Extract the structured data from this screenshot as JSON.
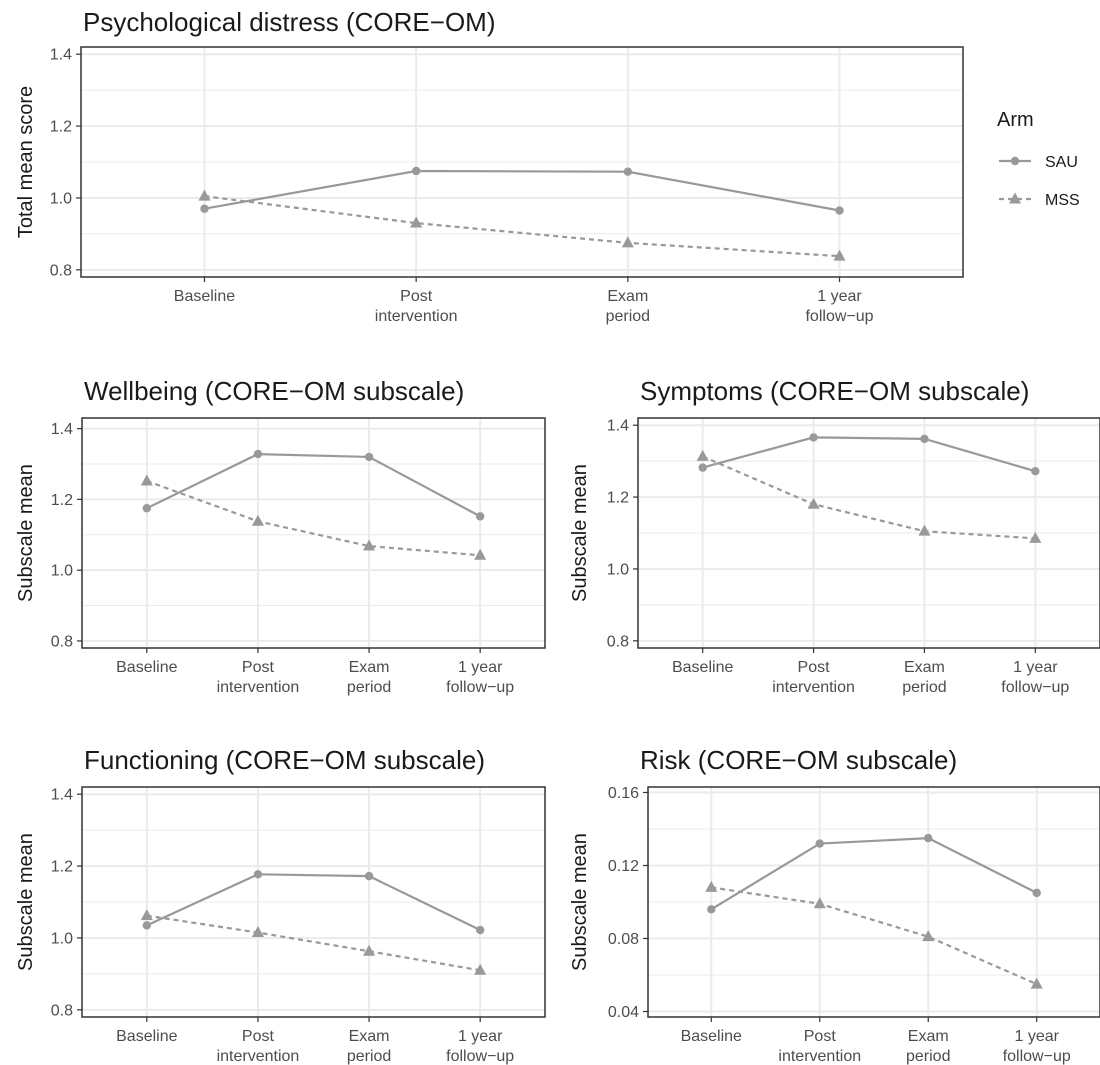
{
  "colors": {
    "series": "#999999",
    "grid": "#ebebeb",
    "panel_border": "#333333",
    "text": "#1a1a1a",
    "tick_text": "#4d4d4d"
  },
  "legend": {
    "title": "Arm",
    "items": [
      {
        "label": "SAU",
        "shape": "circle",
        "linetype": "solid"
      },
      {
        "label": "MSS",
        "shape": "triangle",
        "linetype": "dashed"
      }
    ],
    "placement": "right"
  },
  "chart_data": [
    {
      "type": "line",
      "title": "Psychological distress (CORE−OM)",
      "ylabel": "Total mean score",
      "xlabel": "",
      "categories": [
        "Baseline",
        "Post\nintervention",
        "Exam\nperiod",
        "1 year\nfollow−up"
      ],
      "ylim": [
        0.78,
        1.42
      ],
      "yticks": [
        "0.8",
        "1.0",
        "1.2",
        "1.4"
      ],
      "ytick_values": [
        0.8,
        1.0,
        1.2,
        1.4
      ],
      "grid": true,
      "series": [
        {
          "name": "SAU",
          "values": [
            0.97,
            1.075,
            1.073,
            0.965
          ]
        },
        {
          "name": "MSS",
          "values": [
            1.005,
            0.93,
            0.875,
            0.838
          ]
        }
      ]
    },
    {
      "type": "line",
      "title": "Wellbeing (CORE−OM subscale)",
      "ylabel": "Subscale mean",
      "xlabel": "",
      "categories": [
        "Baseline",
        "Post\nintervention",
        "Exam\nperiod",
        "1 year\nfollow−up"
      ],
      "ylim": [
        0.78,
        1.43
      ],
      "yticks": [
        "0.8",
        "1.0",
        "1.2",
        "1.4"
      ],
      "ytick_values": [
        0.8,
        1.0,
        1.2,
        1.4
      ],
      "grid": true,
      "series": [
        {
          "name": "SAU",
          "values": [
            1.175,
            1.328,
            1.32,
            1.152
          ]
        },
        {
          "name": "MSS",
          "values": [
            1.252,
            1.138,
            1.068,
            1.042
          ]
        }
      ]
    },
    {
      "type": "line",
      "title": "Symptoms (CORE−OM subscale)",
      "ylabel": "Subscale mean",
      "xlabel": "",
      "categories": [
        "Baseline",
        "Post\nintervention",
        "Exam\nperiod",
        "1 year\nfollow−up"
      ],
      "ylim": [
        0.78,
        1.42
      ],
      "yticks": [
        "0.8",
        "1.0",
        "1.2",
        "1.4"
      ],
      "ytick_values": [
        0.8,
        1.0,
        1.2,
        1.4
      ],
      "grid": true,
      "series": [
        {
          "name": "SAU",
          "values": [
            1.282,
            1.366,
            1.362,
            1.272
          ]
        },
        {
          "name": "MSS",
          "values": [
            1.313,
            1.18,
            1.105,
            1.085
          ]
        }
      ]
    },
    {
      "type": "line",
      "title": "Functioning (CORE−OM subscale)",
      "ylabel": "Subscale mean",
      "xlabel": "",
      "categories": [
        "Baseline",
        "Post\nintervention",
        "Exam\nperiod",
        "1 year\nfollow−up"
      ],
      "ylim": [
        0.78,
        1.42
      ],
      "yticks": [
        "0.8",
        "1.0",
        "1.2",
        "1.4"
      ],
      "ytick_values": [
        0.8,
        1.0,
        1.2,
        1.4
      ],
      "grid": true,
      "series": [
        {
          "name": "SAU",
          "values": [
            1.035,
            1.177,
            1.172,
            1.022
          ]
        },
        {
          "name": "MSS",
          "values": [
            1.062,
            1.015,
            0.963,
            0.91
          ]
        }
      ]
    },
    {
      "type": "line",
      "title": "Risk (CORE−OM subscale)",
      "ylabel": "Subscale mean",
      "xlabel": "",
      "categories": [
        "Baseline",
        "Post\nintervention",
        "Exam\nperiod",
        "1 year\nfollow−up"
      ],
      "ylim": [
        0.037,
        0.163
      ],
      "yticks": [
        "0.04",
        "0.08",
        "0.12",
        "0.16"
      ],
      "ytick_values": [
        0.04,
        0.08,
        0.12,
        0.16
      ],
      "grid": true,
      "series": [
        {
          "name": "SAU",
          "values": [
            0.096,
            0.132,
            0.135,
            0.105
          ]
        },
        {
          "name": "MSS",
          "values": [
            0.108,
            0.099,
            0.081,
            0.055
          ]
        }
      ]
    }
  ]
}
